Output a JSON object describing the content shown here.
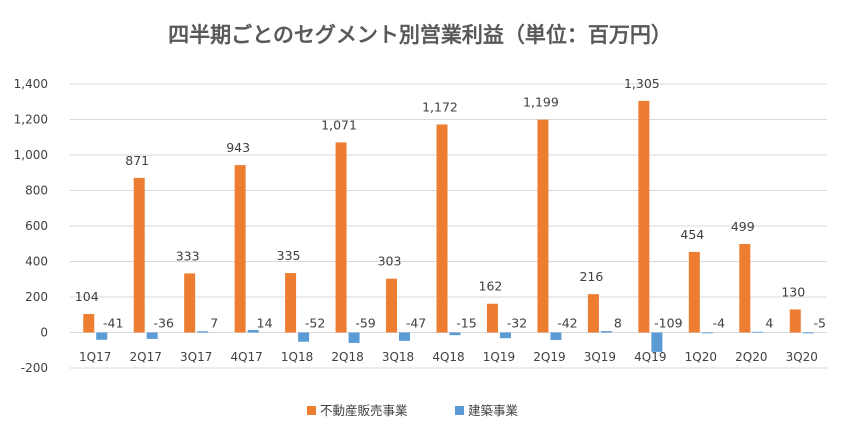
{
  "colors": {
    "series1": "#ED7D31",
    "series2": "#5B9BD5",
    "grid": "#D9D9D9",
    "text": "#404040",
    "title": "#595959"
  },
  "chart_data": {
    "type": "bar",
    "title": "四半期ごとのセグメント別営業利益（単位：百万円）",
    "xlabel": "",
    "ylabel": "",
    "ylim": [
      -200,
      1400
    ],
    "yticks": [
      -200,
      0,
      200,
      400,
      600,
      800,
      1000,
      1200,
      1400
    ],
    "ytick_labels": [
      "-200",
      "0",
      "200",
      "400",
      "600",
      "800",
      "1,000",
      "1,200",
      "1,400"
    ],
    "categories": [
      "1Q17",
      "2Q17",
      "3Q17",
      "4Q17",
      "1Q18",
      "2Q18",
      "3Q18",
      "4Q18",
      "1Q19",
      "2Q19",
      "3Q19",
      "4Q19",
      "1Q20",
      "2Q20",
      "3Q20"
    ],
    "series": [
      {
        "name": "不動産販売事業",
        "values": [
          104,
          871,
          333,
          943,
          335,
          1071,
          303,
          1172,
          162,
          1199,
          216,
          1305,
          454,
          499,
          130
        ],
        "labels": [
          "104",
          "871",
          "333",
          "943",
          "335",
          "1,071",
          "303",
          "1,172",
          "162",
          "1,199",
          "216",
          "1,305",
          "454",
          "499",
          "130"
        ]
      },
      {
        "name": "建築事業",
        "values": [
          -41,
          -36,
          7,
          14,
          -52,
          -59,
          -47,
          -15,
          -32,
          -42,
          8,
          -109,
          -4,
          4,
          -5
        ],
        "labels": [
          "-41",
          "-36",
          "7",
          "14",
          "-52",
          "-59",
          "-47",
          "-15",
          "-32",
          "-42",
          "8",
          "-109",
          "-4",
          "4",
          "-5"
        ]
      }
    ],
    "legend_position": "bottom",
    "grid": true
  }
}
